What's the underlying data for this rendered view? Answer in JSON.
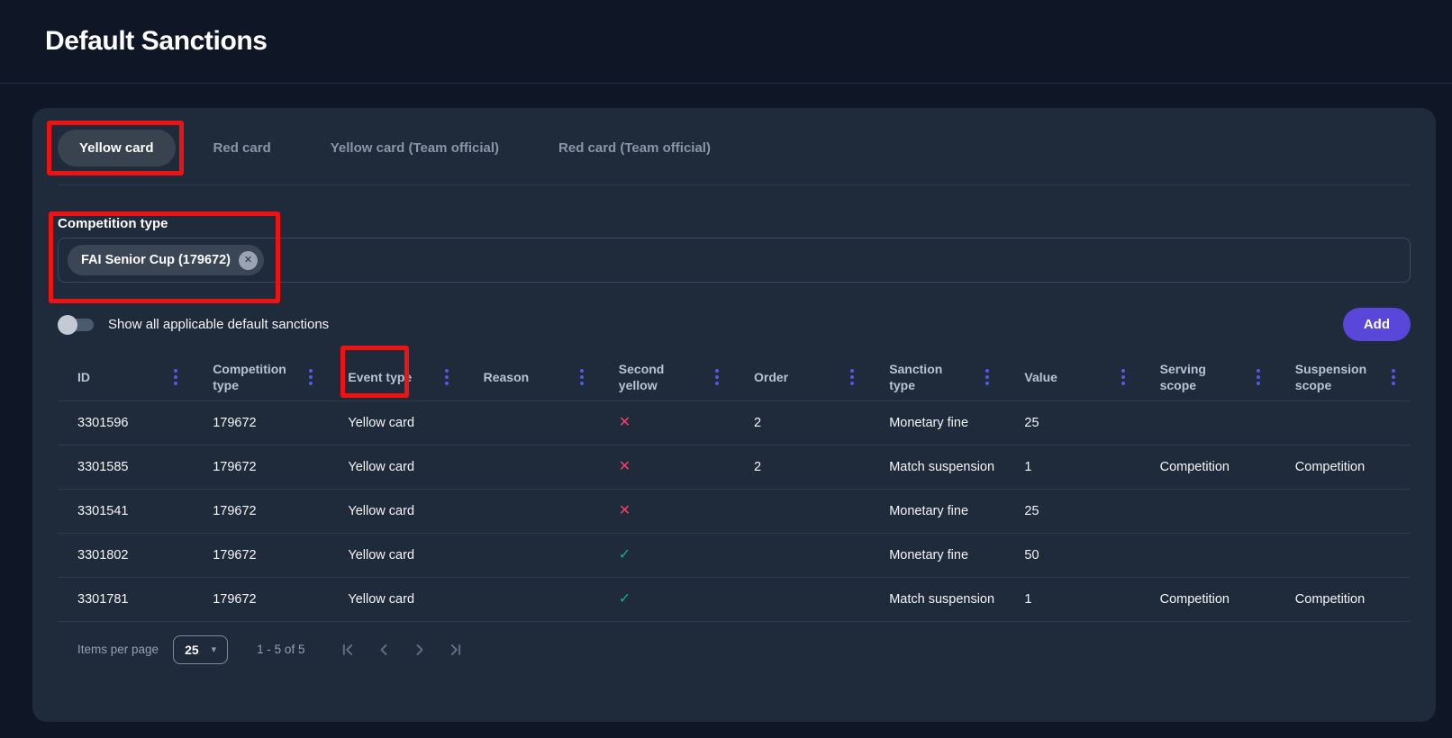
{
  "page": {
    "title": "Default Sanctions"
  },
  "tabs": [
    {
      "label": "Yellow card",
      "selected": true,
      "annotated": true
    },
    {
      "label": "Red card",
      "selected": false
    },
    {
      "label": "Yellow card (Team official)",
      "selected": false
    },
    {
      "label": "Red card (Team official)",
      "selected": false
    }
  ],
  "filter": {
    "label": "Competition type",
    "selected_chip": "FAI Senior Cup (179672)",
    "remove_icon": "✕",
    "annotated": true
  },
  "toggle": {
    "label": "Show all applicable default sanctions",
    "state": "off"
  },
  "actions": {
    "add_label": "Add"
  },
  "table": {
    "columns": [
      {
        "key": "id",
        "label": "ID"
      },
      {
        "key": "competition_type",
        "label": "Competition type"
      },
      {
        "key": "event_type",
        "label": "Event type",
        "annotated": true
      },
      {
        "key": "reason",
        "label": "Reason"
      },
      {
        "key": "second_yellow",
        "label": "Second yellow"
      },
      {
        "key": "order",
        "label": "Order"
      },
      {
        "key": "sanction_type",
        "label": "Sanction type"
      },
      {
        "key": "value",
        "label": "Value"
      },
      {
        "key": "serving_scope",
        "label": "Serving scope"
      },
      {
        "key": "suspension_scope",
        "label": "Suspension scope"
      }
    ],
    "rows": [
      {
        "id": "3301596",
        "competition_type": "179672",
        "event_type": "Yellow card",
        "reason": "",
        "second_yellow": false,
        "order": "2",
        "sanction_type": "Monetary fine",
        "value": "25",
        "serving_scope": "",
        "suspension_scope": ""
      },
      {
        "id": "3301585",
        "competition_type": "179672",
        "event_type": "Yellow card",
        "reason": "",
        "second_yellow": false,
        "order": "2",
        "sanction_type": "Match suspension",
        "value": "1",
        "serving_scope": "Competition",
        "suspension_scope": "Competition"
      },
      {
        "id": "3301541",
        "competition_type": "179672",
        "event_type": "Yellow card",
        "reason": "",
        "second_yellow": false,
        "order": "",
        "sanction_type": "Monetary fine",
        "value": "25",
        "serving_scope": "",
        "suspension_scope": ""
      },
      {
        "id": "3301802",
        "competition_type": "179672",
        "event_type": "Yellow card",
        "reason": "",
        "second_yellow": true,
        "order": "",
        "sanction_type": "Monetary fine",
        "value": "50",
        "serving_scope": "",
        "suspension_scope": ""
      },
      {
        "id": "3301781",
        "competition_type": "179672",
        "event_type": "Yellow card",
        "reason": "",
        "second_yellow": true,
        "order": "",
        "sanction_type": "Match suspension",
        "value": "1",
        "serving_scope": "Competition",
        "suspension_scope": "Competition"
      }
    ]
  },
  "icons": {
    "second_yellow_true": "✓",
    "second_yellow_false": "✕",
    "items_per_page_caret": "▾"
  },
  "pagination": {
    "items_per_page_label": "Items per page",
    "items_per_page_value": "25",
    "range_label": "1 - 5 of 5"
  },
  "colors": {
    "page_bg": "#0f1726",
    "card_bg": "#1f2a3b",
    "accent_purple": "#5557e6",
    "add_button_bg": "#5847d9",
    "cross_red": "#ee4266",
    "check_green": "#17a98c",
    "annotation_red": "#ee1212",
    "chip_bg": "#3a4556",
    "tab_selected_bg": "#394350",
    "toggle_track": "#4b5a6e",
    "toggle_knob": "#c3cad4",
    "divider": "#2e3a4d"
  }
}
